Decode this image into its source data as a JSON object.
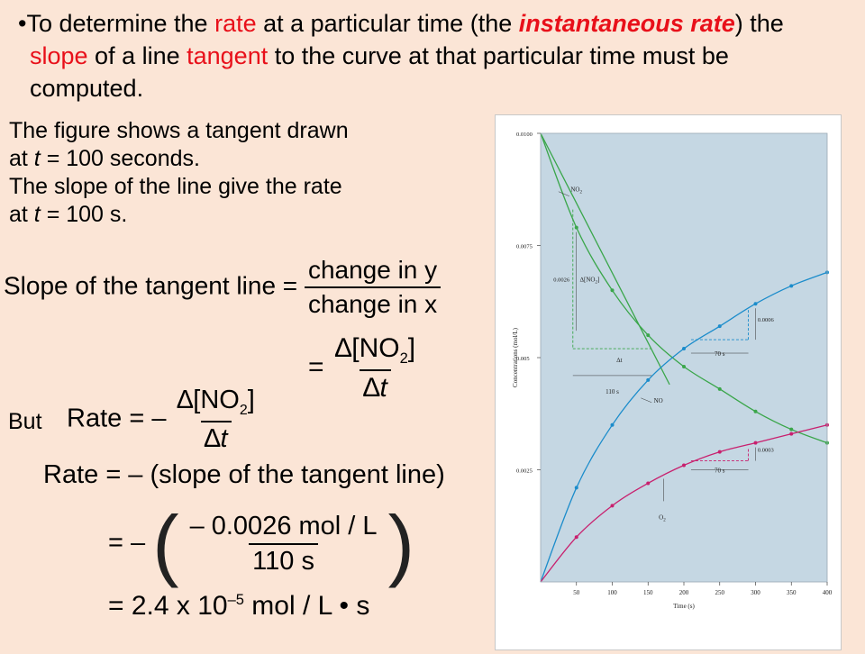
{
  "bullet": {
    "marker": "•",
    "t1": "To determine the ",
    "rate": "rate",
    "t2": " at a particular time (the ",
    "instantaneous_rate": "instantaneous rate",
    "t3": ") the ",
    "slope": "slope",
    "t4": " of a line ",
    "tangent": "tangent",
    "t5": " to the curve at that particular time must be computed."
  },
  "desc": {
    "line1": "The figure shows a tangent drawn",
    "line2a": "at ",
    "line2t": "t",
    "line2b": " = 100 seconds.",
    "line3": "The slope of the line give the rate",
    "line4a": "at ",
    "line4t": "t",
    "line4b": " = 100 s."
  },
  "eq1": {
    "lhs": "Slope of the tangent line",
    "eq": "=",
    "num": "change in y",
    "den": "change in x"
  },
  "eq2": {
    "eq": "=",
    "num_a": "∆[NO",
    "num_sub": "2",
    "num_b": "]",
    "den_a": "∆",
    "den_t": "t"
  },
  "but_label": "But",
  "eq3": {
    "lhs": "Rate",
    "eq": "= –",
    "num_a": "∆[NO",
    "num_sub": "2",
    "num_b": "]",
    "den_a": "∆",
    "den_t": "t"
  },
  "eq4": {
    "text": "Rate = – (slope of the tangent line)"
  },
  "eq5": {
    "eq": "= –",
    "open": "(",
    "close": ")",
    "num": "– 0.0026 mol / L",
    "den": "110 s"
  },
  "eq6": {
    "a": "= 2.4 x 10",
    "exp": "–5",
    "b": " mol / L • s"
  },
  "colors": {
    "no2": "#3aa64a",
    "no": "#1b8ccb",
    "o2": "#c8206e",
    "plot_bg": "#c5d7e3",
    "dashes": "#1b8ccb"
  },
  "chart_data": {
    "type": "line",
    "xlabel": "Time (s)",
    "ylabel": "Concentrations (mol/L)",
    "xlim": [
      0,
      400
    ],
    "ylim": [
      0,
      0.01
    ],
    "xticks": [
      "50",
      "100",
      "150",
      "200",
      "250",
      "300",
      "350",
      "400"
    ],
    "yticks": [
      "0.0025",
      "0.005",
      "0.0075",
      "0.0100"
    ],
    "series": [
      {
        "name": "NO2",
        "label": "NO",
        "label_sub": "2",
        "x": [
          0,
          50,
          100,
          150,
          200,
          250,
          300,
          350,
          400
        ],
        "y": [
          0.01,
          0.0079,
          0.0065,
          0.0055,
          0.0048,
          0.0043,
          0.0038,
          0.0034,
          0.0031
        ]
      },
      {
        "name": "NO",
        "label": "NO",
        "label_sub": "",
        "x": [
          0,
          50,
          100,
          150,
          200,
          250,
          300,
          350,
          400
        ],
        "y": [
          0,
          0.0021,
          0.0035,
          0.0045,
          0.0052,
          0.0057,
          0.0062,
          0.0066,
          0.0069
        ]
      },
      {
        "name": "O2",
        "label": "O",
        "label_sub": "2",
        "x": [
          0,
          50,
          100,
          150,
          200,
          250,
          300,
          350,
          400
        ],
        "y": [
          0,
          0.001,
          0.0017,
          0.0022,
          0.0026,
          0.0029,
          0.0031,
          0.0033,
          0.0035
        ]
      }
    ],
    "annotations": {
      "delta_no2": "∆[NO",
      "delta_no2_sub": "2",
      "delta_no2_close": "]",
      "value_0026": "0.0026",
      "delta_t": "∆t",
      "t110": "110 s",
      "t70a": "70 s",
      "value_0006": "0.0006",
      "t70b": "70 s",
      "value_0003": "0.0003"
    }
  }
}
